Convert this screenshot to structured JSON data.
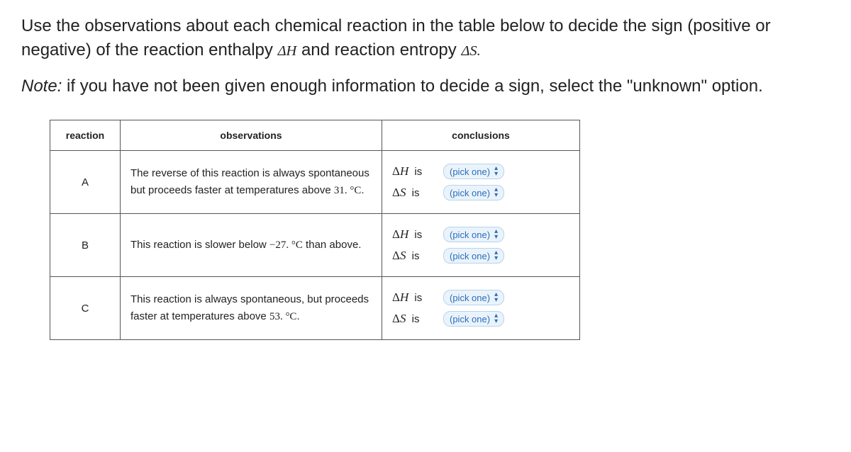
{
  "instructions": {
    "part1": "Use the observations about each chemical reaction in the table below to decide the sign (positive or negative) of the reaction enthalpy ",
    "deltaH": "ΔH",
    "part2": " and reaction entropy ",
    "deltaS": "ΔS.",
    "note_label": "Note:",
    "note_body": " if you have not been given enough information to decide a sign, select the \"unknown\" option."
  },
  "table": {
    "headers": {
      "reaction": "reaction",
      "observations": "observations",
      "conclusions": "conclusions"
    },
    "dh_is": "ΔH  is",
    "ds_is": "ΔS  is",
    "picker_label": "(pick one)",
    "rows": [
      {
        "id": "A",
        "obs_pre": "The reverse of this reaction is always spontaneous but proceeds faster at temperatures above ",
        "obs_val": "31. °C",
        "obs_post": "."
      },
      {
        "id": "B",
        "obs_pre": "This reaction is slower below ",
        "obs_val": "−27. °C",
        "obs_post": " than above."
      },
      {
        "id": "C",
        "obs_pre": "This reaction is always spontaneous, but proceeds faster at temperatures above ",
        "obs_val": "53. °C",
        "obs_post": "."
      }
    ]
  }
}
